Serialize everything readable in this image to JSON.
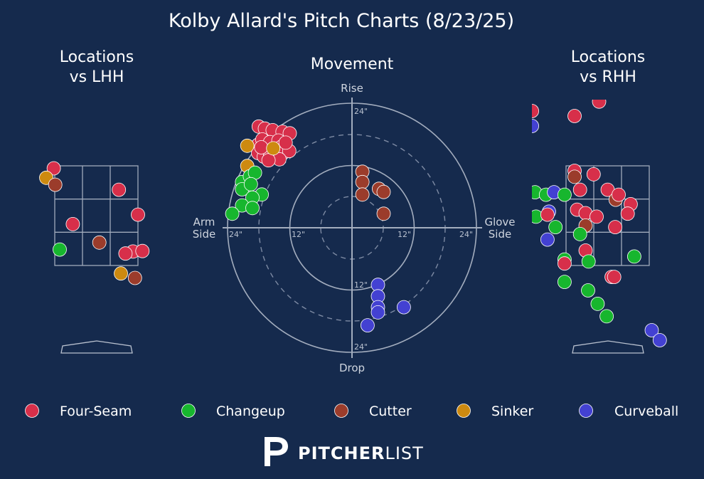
{
  "chart_data": {
    "type": "scatter",
    "title": "Kolby Allard's Pitch Charts (8/23/25)",
    "pitch_types": [
      {
        "name": "Four-Seam",
        "color": "#d72f4a"
      },
      {
        "name": "Changeup",
        "color": "#17b62e"
      },
      {
        "name": "Cutter",
        "color": "#9b3c2b"
      },
      {
        "name": "Sinker",
        "color": "#cd8a10"
      },
      {
        "name": "Curveball",
        "color": "#4341d2"
      }
    ],
    "panels": {
      "lhh": {
        "title_line1": "Locations",
        "title_line2": "vs LHH",
        "x_range": [
          -1.7,
          1.7
        ],
        "y_range": [
          -0.3,
          4.5
        ],
        "zone": {
          "x": [
            -0.83,
            0.83
          ],
          "y": [
            1.5,
            3.5
          ]
        },
        "pitches": [
          {
            "type": "Four-Seam",
            "x": -0.85,
            "y": 3.45
          },
          {
            "type": "Sinker",
            "x": -1.0,
            "y": 3.26
          },
          {
            "type": "Cutter",
            "x": -0.82,
            "y": 3.12
          },
          {
            "type": "Four-Seam",
            "x": 0.45,
            "y": 3.02
          },
          {
            "type": "Four-Seam",
            "x": 0.83,
            "y": 2.52
          },
          {
            "type": "Four-Seam",
            "x": -0.47,
            "y": 2.33
          },
          {
            "type": "Cutter",
            "x": 0.06,
            "y": 1.96
          },
          {
            "type": "Changeup",
            "x": -0.73,
            "y": 1.82
          },
          {
            "type": "Four-Seam",
            "x": 0.73,
            "y": 1.78
          },
          {
            "type": "Four-Seam",
            "x": 0.58,
            "y": 1.74
          },
          {
            "type": "Four-Seam",
            "x": 0.92,
            "y": 1.79
          },
          {
            "type": "Sinker",
            "x": 0.49,
            "y": 1.34
          },
          {
            "type": "Cutter",
            "x": 0.77,
            "y": 1.25
          }
        ]
      },
      "movement": {
        "title": "Movement",
        "label_top": "Rise",
        "label_bottom": "Drop",
        "label_left": [
          "Arm",
          "Side"
        ],
        "label_right": [
          "Glove",
          "Side"
        ],
        "ring_labels": [
          "12\"",
          "24\""
        ],
        "axis_max_in": 24,
        "pitches": [
          {
            "type": "Four-Seam",
            "x": -18.0,
            "y": 19.5
          },
          {
            "type": "Four-Seam",
            "x": -16.8,
            "y": 19.1
          },
          {
            "type": "Four-Seam",
            "x": -15.3,
            "y": 18.8
          },
          {
            "type": "Four-Seam",
            "x": -13.4,
            "y": 18.5
          },
          {
            "type": "Four-Seam",
            "x": -12.0,
            "y": 18.2
          },
          {
            "type": "Four-Seam",
            "x": -18.1,
            "y": 16.0
          },
          {
            "type": "Four-Seam",
            "x": -17.3,
            "y": 17.0
          },
          {
            "type": "Four-Seam",
            "x": -15.8,
            "y": 16.5
          },
          {
            "type": "Four-Seam",
            "x": -14.2,
            "y": 16.8
          },
          {
            "type": "Four-Seam",
            "x": -13.6,
            "y": 15.6
          },
          {
            "type": "Four-Seam",
            "x": -15.2,
            "y": 15.2
          },
          {
            "type": "Four-Seam",
            "x": -16.4,
            "y": 14.5
          },
          {
            "type": "Four-Seam",
            "x": -18.1,
            "y": 14.4
          },
          {
            "type": "Four-Seam",
            "x": -17.0,
            "y": 13.7
          },
          {
            "type": "Four-Seam",
            "x": -15.8,
            "y": 13.8
          },
          {
            "type": "Four-Seam",
            "x": -13.4,
            "y": 14.3
          },
          {
            "type": "Four-Seam",
            "x": -12.1,
            "y": 14.8
          },
          {
            "type": "Four-Seam",
            "x": -14.0,
            "y": 13.2
          },
          {
            "type": "Four-Seam",
            "x": -16.1,
            "y": 13.0
          },
          {
            "type": "Four-Seam",
            "x": -17.5,
            "y": 15.5
          },
          {
            "type": "Four-Seam",
            "x": -12.8,
            "y": 16.4
          },
          {
            "type": "Sinker",
            "x": -15.2,
            "y": 15.3
          },
          {
            "type": "Sinker",
            "x": -20.2,
            "y": 15.8
          },
          {
            "type": "Sinker",
            "x": -20.2,
            "y": 11.9
          },
          {
            "type": "Changeup",
            "x": -21.2,
            "y": 8.8
          },
          {
            "type": "Changeup",
            "x": -19.7,
            "y": 9.9
          },
          {
            "type": "Changeup",
            "x": -18.7,
            "y": 10.6
          },
          {
            "type": "Changeup",
            "x": -21.2,
            "y": 7.4
          },
          {
            "type": "Changeup",
            "x": -19.5,
            "y": 8.4
          },
          {
            "type": "Changeup",
            "x": -17.4,
            "y": 6.4
          },
          {
            "type": "Changeup",
            "x": -19.2,
            "y": 5.8
          },
          {
            "type": "Changeup",
            "x": -21.2,
            "y": 4.3
          },
          {
            "type": "Changeup",
            "x": -19.2,
            "y": 3.8
          },
          {
            "type": "Changeup",
            "x": -23.1,
            "y": 2.7
          },
          {
            "type": "Cutter",
            "x": 2.0,
            "y": 10.8
          },
          {
            "type": "Cutter",
            "x": 2.0,
            "y": 8.8
          },
          {
            "type": "Cutter",
            "x": 5.2,
            "y": 7.5
          },
          {
            "type": "Cutter",
            "x": 6.1,
            "y": 6.9
          },
          {
            "type": "Cutter",
            "x": 2.0,
            "y": 6.4
          },
          {
            "type": "Cutter",
            "x": 6.1,
            "y": 2.7
          },
          {
            "type": "Curveball",
            "x": 5.0,
            "y": -11.0
          },
          {
            "type": "Curveball",
            "x": 5.0,
            "y": -13.2
          },
          {
            "type": "Curveball",
            "x": 5.0,
            "y": -15.3
          },
          {
            "type": "Curveball",
            "x": 5.0,
            "y": -16.3
          },
          {
            "type": "Curveball",
            "x": 10.0,
            "y": -15.3
          },
          {
            "type": "Curveball",
            "x": 3.0,
            "y": -18.8
          }
        ]
      },
      "rhh": {
        "title_line1": "Locations",
        "title_line2": "vs RHH",
        "x_range": [
          -1.7,
          1.7
        ],
        "y_range": [
          -0.3,
          4.5
        ],
        "zone": {
          "x": [
            -0.83,
            0.83
          ],
          "y": [
            1.5,
            3.5
          ]
        },
        "pitches": [
          {
            "type": "Four-Seam",
            "x": 0.0,
            "y": 5.5
          },
          {
            "type": "Four-Seam",
            "x": -0.17,
            "y": 4.79
          },
          {
            "type": "Four-Seam",
            "x": -1.51,
            "y": 4.6
          },
          {
            "type": "Four-Seam",
            "x": -0.66,
            "y": 4.5
          },
          {
            "type": "Curveball",
            "x": -1.51,
            "y": 4.3
          },
          {
            "type": "Four-Seam",
            "x": -0.66,
            "y": 3.4
          },
          {
            "type": "Cutter",
            "x": -0.66,
            "y": 3.28
          },
          {
            "type": "Four-Seam",
            "x": -0.28,
            "y": 3.33
          },
          {
            "type": "Changeup",
            "x": -1.45,
            "y": 2.97
          },
          {
            "type": "Changeup",
            "x": -1.23,
            "y": 2.92
          },
          {
            "type": "Curveball",
            "x": -1.07,
            "y": 2.97
          },
          {
            "type": "Changeup",
            "x": -0.86,
            "y": 2.92
          },
          {
            "type": "Four-Seam",
            "x": -0.55,
            "y": 3.02
          },
          {
            "type": "Four-Seam",
            "x": 0.0,
            "y": 3.02
          },
          {
            "type": "Cutter",
            "x": 0.16,
            "y": 2.82
          },
          {
            "type": "Four-Seam",
            "x": 0.22,
            "y": 2.92
          },
          {
            "type": "Four-Seam",
            "x": 0.46,
            "y": 2.73
          },
          {
            "type": "Four-Seam",
            "x": 0.4,
            "y": 2.54
          },
          {
            "type": "Four-Seam",
            "x": -0.61,
            "y": 2.62
          },
          {
            "type": "Four-Seam",
            "x": -0.44,
            "y": 2.55
          },
          {
            "type": "Four-Seam",
            "x": -0.22,
            "y": 2.48
          },
          {
            "type": "Curveball",
            "x": -1.17,
            "y": 2.58
          },
          {
            "type": "Changeup",
            "x": -1.43,
            "y": 2.48
          },
          {
            "type": "Four-Seam",
            "x": -1.2,
            "y": 2.52
          },
          {
            "type": "Cutter",
            "x": -0.44,
            "y": 2.3
          },
          {
            "type": "Changeup",
            "x": -1.04,
            "y": 2.27
          },
          {
            "type": "Four-Seam",
            "x": 0.15,
            "y": 2.27
          },
          {
            "type": "Changeup",
            "x": -0.55,
            "y": 2.13
          },
          {
            "type": "Curveball",
            "x": -1.2,
            "y": 2.02
          },
          {
            "type": "Four-Seam",
            "x": -0.44,
            "y": 1.8
          },
          {
            "type": "Changeup",
            "x": -0.86,
            "y": 1.62
          },
          {
            "type": "Four-Seam",
            "x": -0.86,
            "y": 1.54
          },
          {
            "type": "Changeup",
            "x": -0.38,
            "y": 1.58
          },
          {
            "type": "Changeup",
            "x": 0.53,
            "y": 1.68
          },
          {
            "type": "Four-Seam",
            "x": 0.08,
            "y": 1.27
          },
          {
            "type": "Four-Seam",
            "x": 0.13,
            "y": 1.27
          },
          {
            "type": "Changeup",
            "x": -0.86,
            "y": 1.17
          },
          {
            "type": "Changeup",
            "x": -0.39,
            "y": 1.0
          },
          {
            "type": "Changeup",
            "x": -0.2,
            "y": 0.73
          },
          {
            "type": "Changeup",
            "x": -0.02,
            "y": 0.48
          },
          {
            "type": "Curveball",
            "x": 0.88,
            "y": 0.2
          },
          {
            "type": "Curveball",
            "x": 1.04,
            "y": 0.0
          }
        ]
      }
    },
    "legend": [
      "Four-Seam",
      "Changeup",
      "Cutter",
      "Sinker",
      "Curveball"
    ]
  },
  "branding": {
    "logo_bold": "PITCHER",
    "logo_light": "LIST"
  }
}
